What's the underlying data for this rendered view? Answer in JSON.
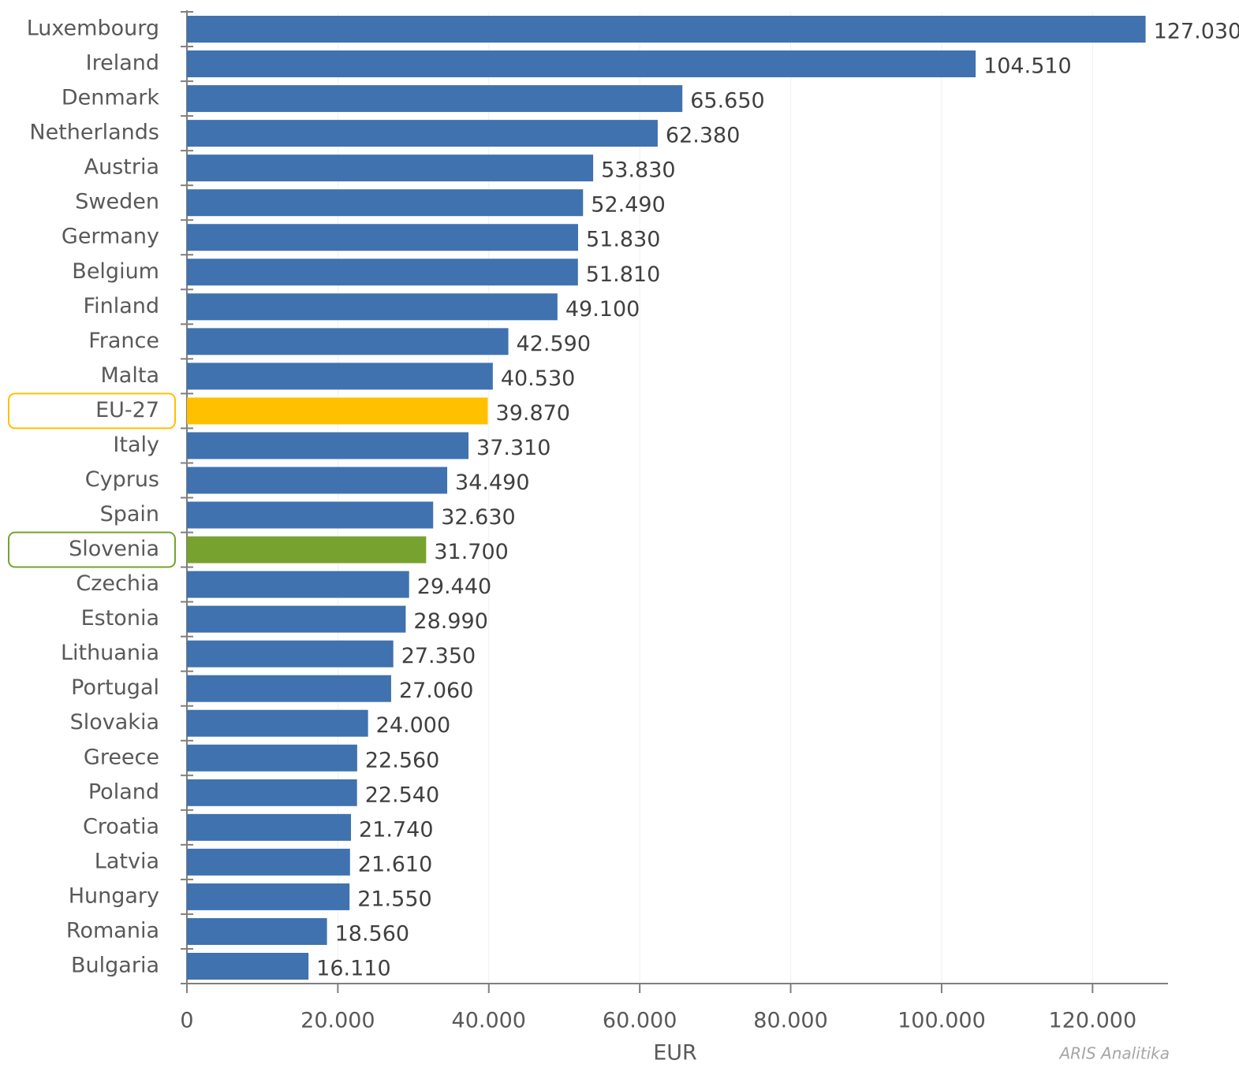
{
  "chart_data": {
    "type": "bar",
    "orientation": "horizontal",
    "categories": [
      "Luxembourg",
      "Ireland",
      "Denmark",
      "Netherlands",
      "Austria",
      "Sweden",
      "Germany",
      "Belgium",
      "Finland",
      "France",
      "Malta",
      "EU-27",
      "Italy",
      "Cyprus",
      "Spain",
      "Slovenia",
      "Czechia",
      "Estonia",
      "Lithuania",
      "Portugal",
      "Slovakia",
      "Greece",
      "Poland",
      "Croatia",
      "Latvia",
      "Hungary",
      "Romania",
      "Bulgaria"
    ],
    "values": [
      127030,
      104510,
      65650,
      62380,
      53830,
      52490,
      51830,
      51810,
      49100,
      42590,
      40530,
      39870,
      37310,
      34490,
      32630,
      31700,
      29440,
      28990,
      27350,
      27060,
      24000,
      22560,
      22540,
      21740,
      21610,
      21550,
      18560,
      16110
    ],
    "value_labels": [
      "127.030",
      "104.510",
      "65.650",
      "62.380",
      "53.830",
      "52.490",
      "51.830",
      "51.810",
      "49.100",
      "42.590",
      "40.530",
      "39.870",
      "37.310",
      "34.490",
      "32.630",
      "31.700",
      "29.440",
      "28.990",
      "27.350",
      "27.060",
      "24.000",
      "22.560",
      "22.540",
      "21.740",
      "21.610",
      "21.550",
      "18.560",
      "16.110"
    ],
    "colors": [
      "#3f72af",
      "#3f72af",
      "#3f72af",
      "#3f72af",
      "#3f72af",
      "#3f72af",
      "#3f72af",
      "#3f72af",
      "#3f72af",
      "#3f72af",
      "#3f72af",
      "#ffc000",
      "#3f72af",
      "#3f72af",
      "#3f72af",
      "#77a22f",
      "#3f72af",
      "#3f72af",
      "#3f72af",
      "#3f72af",
      "#3f72af",
      "#3f72af",
      "#3f72af",
      "#3f72af",
      "#3f72af",
      "#3f72af",
      "#3f72af",
      "#3f72af"
    ],
    "color": "#3f72af",
    "xlim": [
      0,
      130000
    ],
    "xticks": [
      0,
      {
        "value": 20000,
        "label": "20.000"
      },
      {
        "value": 40000,
        "label": "40.000"
      },
      {
        "value": 60000,
        "label": "60.000"
      },
      {
        "value": 80000,
        "label": "80.000"
      },
      {
        "value": 100000,
        "label": "100.000"
      },
      {
        "value": 120000,
        "label": "120.000"
      }
    ],
    "x_label": "EUR",
    "grid": true,
    "source": "ARIS Analitika"
  }
}
